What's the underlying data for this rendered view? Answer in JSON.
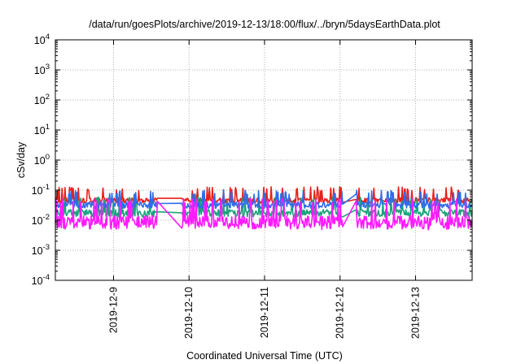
{
  "chart_data": {
    "type": "line",
    "title": "/data/run/goesPlots/archive/2019-12-13/18:00/flux/../bryn/5daysEarthData.plot",
    "xlabel": "Coordinated Universal Time (UTC)",
    "ylabel": "cSv/day",
    "yscale": "log",
    "ylim": [
      0.0001,
      10000
    ],
    "xlim": [
      "2019-12-08T05:30",
      "2019-12-13T18:00"
    ],
    "grid": true,
    "y_ticks": [
      {
        "value": 0.0001,
        "mantissa": "10",
        "exp": "-4"
      },
      {
        "value": 0.001,
        "mantissa": "10",
        "exp": "-3"
      },
      {
        "value": 0.01,
        "mantissa": "10",
        "exp": "-2"
      },
      {
        "value": 0.1,
        "mantissa": "10",
        "exp": "-1"
      },
      {
        "value": 1,
        "mantissa": "10",
        "exp": "0"
      },
      {
        "value": 10,
        "mantissa": "10",
        "exp": "1"
      },
      {
        "value": 100,
        "mantissa": "10",
        "exp": "2"
      },
      {
        "value": 1000,
        "mantissa": "10",
        "exp": "3"
      },
      {
        "value": 10000,
        "mantissa": "10",
        "exp": "4"
      }
    ],
    "x_ticks": [
      "2019-12-9",
      "2019-12-10",
      "2019-12-11",
      "2019-12-12",
      "2019-12-13"
    ],
    "data_gaps": [
      [
        "2019-12-09T14:00",
        "2019-12-09T21:30"
      ],
      [
        "2019-12-12T01:00",
        "2019-12-12T05:00"
      ]
    ],
    "series": [
      {
        "color": "#e8201a",
        "base": 0.045,
        "spread": 0.18,
        "spike": 0.11
      },
      {
        "color": "#1aa37a",
        "base": 0.017,
        "spread": 0.25,
        "spike": 0.05
      },
      {
        "color": "#2e6de8",
        "base": 0.032,
        "spread": 0.22,
        "spike": 0.085
      },
      {
        "color": "#ff1aff",
        "base": 0.0085,
        "spread": 0.45,
        "spike": 0.045
      }
    ]
  }
}
